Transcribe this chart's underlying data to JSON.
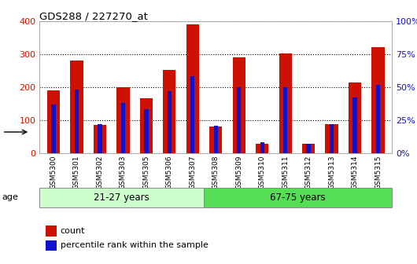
{
  "title": "GDS288 / 227270_at",
  "samples": [
    "GSM5300",
    "GSM5301",
    "GSM5302",
    "GSM5303",
    "GSM5305",
    "GSM5306",
    "GSM5307",
    "GSM5308",
    "GSM5309",
    "GSM5310",
    "GSM5311",
    "GSM5312",
    "GSM5313",
    "GSM5314",
    "GSM5315"
  ],
  "count_values": [
    190,
    280,
    85,
    200,
    167,
    253,
    390,
    80,
    290,
    28,
    302,
    28,
    87,
    215,
    322
  ],
  "percentile_values": [
    37,
    48,
    22,
    38,
    33,
    47,
    58,
    21,
    50,
    8,
    50,
    7,
    22,
    42,
    52
  ],
  "group1_label": "21-27 years",
  "group2_label": "67-75 years",
  "group1_samples": 7,
  "group2_samples": 8,
  "age_label": "age",
  "red_color": "#cc1100",
  "blue_color": "#1111cc",
  "group1_bg": "#ccffcc",
  "group2_bg": "#55dd55",
  "ylim_left": [
    0,
    400
  ],
  "ylim_right": [
    0,
    100
  ],
  "yticks_left": [
    0,
    100,
    200,
    300,
    400
  ],
  "yticks_right": [
    0,
    25,
    50,
    75,
    100
  ],
  "ytick_labels_right": [
    "0%",
    "25%",
    "50%",
    "75%",
    "100%"
  ],
  "legend_count": "count",
  "legend_percentile": "percentile rank within the sample",
  "red_bar_width": 0.55,
  "blue_bar_width": 0.18
}
